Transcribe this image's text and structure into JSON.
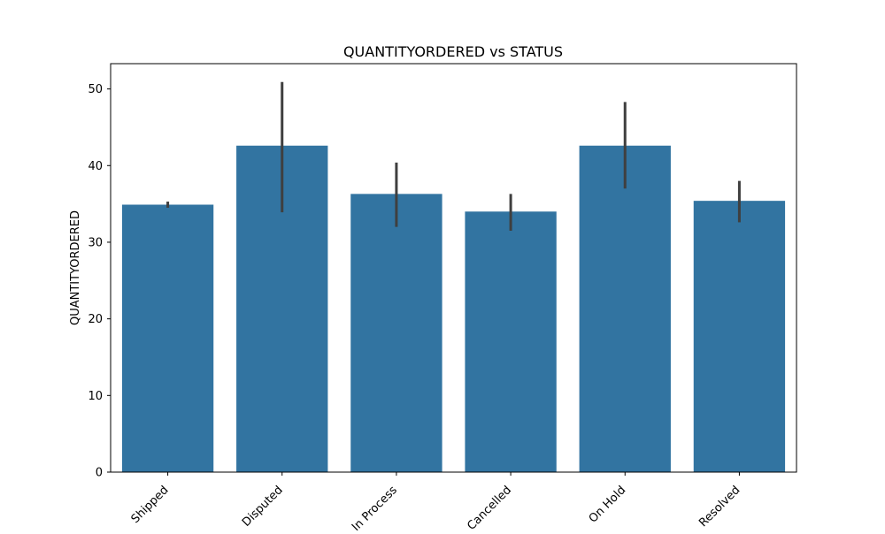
{
  "chart_data": {
    "type": "bar",
    "title": "QUANTITYORDERED vs STATUS",
    "xlabel": "",
    "ylabel": "QUANTITYORDERED",
    "categories": [
      "Shipped",
      "Disputed",
      "In Process",
      "Cancelled",
      "On Hold",
      "Resolved"
    ],
    "values": [
      34.9,
      42.6,
      36.3,
      34.0,
      42.6,
      35.4
    ],
    "error_low": [
      34.5,
      33.9,
      32.0,
      31.5,
      37.0,
      32.6
    ],
    "error_high": [
      35.3,
      50.9,
      40.4,
      36.3,
      48.3,
      38.0
    ],
    "ylim": [
      0,
      53.3
    ],
    "yticks": [
      0,
      10,
      20,
      30,
      40,
      50
    ],
    "grid": false,
    "bar_color": "#3274a1",
    "error_color": "#3f3f3f"
  }
}
